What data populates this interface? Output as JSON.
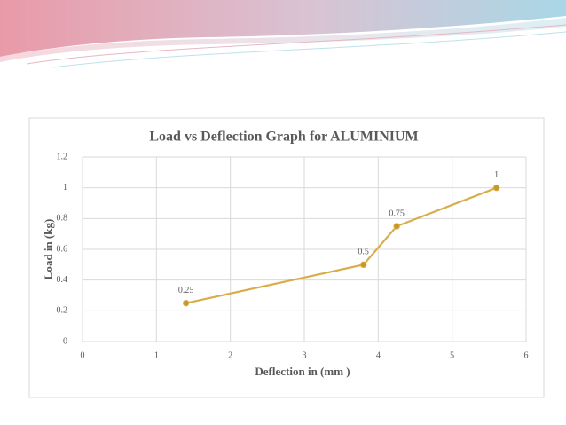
{
  "chart_data": {
    "type": "line",
    "title": "Load vs Deflection Graph for ALUMINIUM",
    "x_label": "Deflection in (mm )",
    "y_label": "Load in (kg)",
    "series": [
      {
        "name": "Load",
        "color": "#d9ad4a",
        "marker_color": "#c9962a",
        "x": [
          1.4,
          3.8,
          4.25,
          5.6
        ],
        "values": [
          0.25,
          0.5,
          0.75,
          1
        ]
      }
    ],
    "xlim": [
      0,
      6
    ],
    "xticks": [
      0,
      1,
      2,
      3,
      4,
      5,
      6
    ],
    "ylim": [
      0,
      1.2
    ],
    "yticks": [
      0,
      0.2,
      0.4,
      0.6,
      0.8,
      1,
      1.2
    ],
    "grid": true
  }
}
